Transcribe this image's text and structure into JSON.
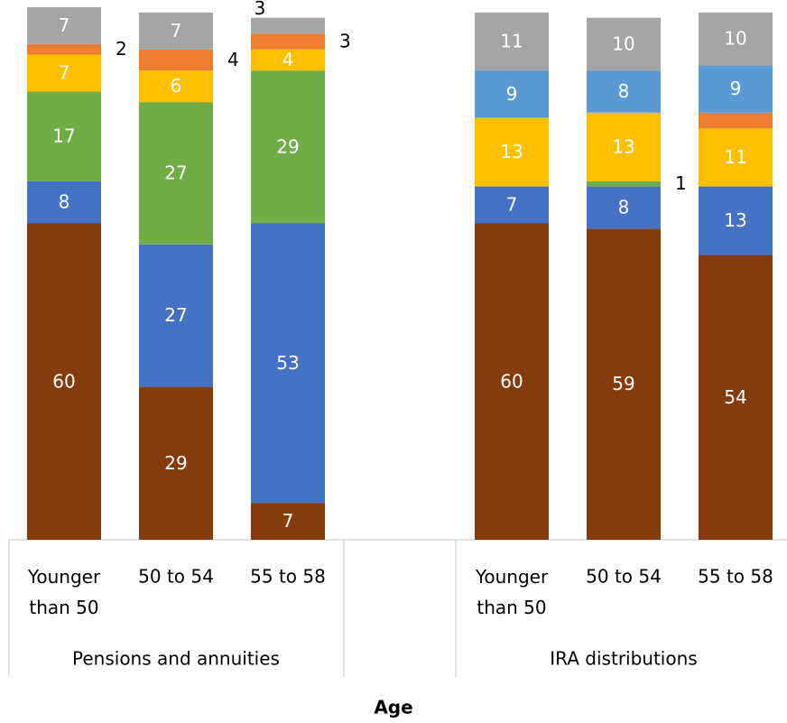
{
  "chart_data": {
    "type": "bar",
    "stacked": true,
    "xlabel": "Age",
    "groups": [
      {
        "label": "Pensions and annuities",
        "categories": [
          "Younger than 50",
          "50 to 54",
          "55 to 58"
        ],
        "series": [
          {
            "color": "#843C0C",
            "values": [
              60,
              29,
              7
            ]
          },
          {
            "color": "#4472C4",
            "values": [
              8,
              27,
              53
            ]
          },
          {
            "color": "#70AD47",
            "values": [
              17,
              27,
              29
            ]
          },
          {
            "color": "#FFC000",
            "values": [
              7,
              6,
              4
            ]
          },
          {
            "color": "#ED7D31",
            "values": [
              2,
              4,
              3
            ]
          },
          {
            "color": "#5B9BD5",
            "values": [
              null,
              null,
              null
            ]
          },
          {
            "color": "#A5A5A5",
            "values": [
              7,
              7,
              3
            ]
          }
        ]
      },
      {
        "label": "IRA distributions",
        "categories": [
          "Younger than 50",
          "50 to 54",
          "55 to 58"
        ],
        "series": [
          {
            "color": "#843C0C",
            "values": [
              60,
              59,
              54
            ]
          },
          {
            "color": "#4472C4",
            "values": [
              7,
              8,
              13
            ]
          },
          {
            "color": "#70AD47",
            "values": [
              null,
              1,
              null
            ]
          },
          {
            "color": "#FFC000",
            "values": [
              13,
              13,
              11
            ]
          },
          {
            "color": "#ED7D31",
            "values": [
              null,
              null,
              3
            ]
          },
          {
            "color": "#5B9BD5",
            "values": [
              9,
              8,
              9
            ]
          },
          {
            "color": "#A5A5A5",
            "values": [
              11,
              10,
              10
            ]
          }
        ]
      }
    ]
  }
}
